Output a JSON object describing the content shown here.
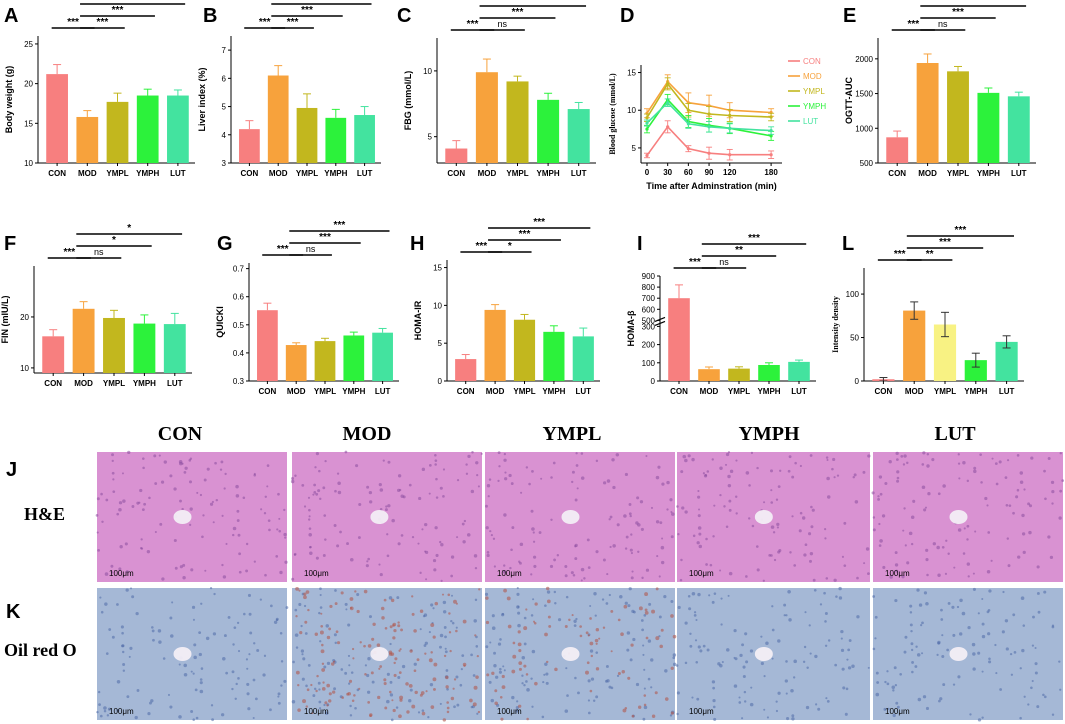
{
  "colors": {
    "CON": "#f77f7f",
    "MOD": "#f7a23c",
    "YMPL": "#c2b71e",
    "YMPH": "#2cf23b",
    "LUT": "#43e39f",
    "YMPL_L": "#f8f283",
    "he_bg": "#d992d2",
    "he_dot": "#8a4d9e",
    "oil_bg": "#a5b8d6",
    "oil_dot": "#4f6aa8",
    "oil_red": "#b0594e"
  },
  "chart_data": [
    {
      "panel": "A",
      "type": "bar",
      "ylabel": "Body weight (g)",
      "categories": [
        "CON",
        "MOD",
        "YMPL",
        "YMPH",
        "LUT"
      ],
      "values": [
        21.2,
        15.8,
        17.7,
        18.5,
        18.5
      ],
      "errors": [
        1.2,
        0.8,
        1.1,
        0.8,
        0.7
      ],
      "ylim": [
        10,
        26
      ],
      "yticks": [
        "10",
        "15",
        "20",
        "25"
      ],
      "colorKeys": [
        "CON",
        "MOD",
        "YMPL",
        "YMPH",
        "LUT"
      ],
      "sig": [
        {
          "from": 0,
          "to": 1,
          "label": "***",
          "tier": 0
        },
        {
          "from": 1,
          "to": 2,
          "label": "***",
          "tier": 0
        },
        {
          "from": 1,
          "to": 3,
          "label": "***",
          "tier": 1
        },
        {
          "from": 1,
          "to": 4,
          "label": "***",
          "tier": 2
        }
      ]
    },
    {
      "panel": "B",
      "type": "bar",
      "ylabel": "Liver index (%)",
      "categories": [
        "CON",
        "MOD",
        "YMPL",
        "YMPH",
        "LUT"
      ],
      "values": [
        4.2,
        6.1,
        4.95,
        4.6,
        4.7
      ],
      "errors": [
        0.3,
        0.35,
        0.5,
        0.3,
        0.3
      ],
      "ylim": [
        3,
        7.5
      ],
      "yticks": [
        "3",
        "4",
        "5",
        "6",
        "7"
      ],
      "colorKeys": [
        "CON",
        "MOD",
        "YMPL",
        "YMPH",
        "LUT"
      ],
      "sig": [
        {
          "from": 0,
          "to": 1,
          "label": "***",
          "tier": 0
        },
        {
          "from": 1,
          "to": 2,
          "label": "***",
          "tier": 0
        },
        {
          "from": 1,
          "to": 3,
          "label": "***",
          "tier": 1
        },
        {
          "from": 1,
          "to": 4,
          "label": "***",
          "tier": 2
        }
      ]
    },
    {
      "panel": "C",
      "type": "bar",
      "ylabel": "FBG (mmol/L)",
      "categories": [
        "CON",
        "MOD",
        "YMPL",
        "YMPH",
        "LUT"
      ],
      "values": [
        4.1,
        9.9,
        9.2,
        7.8,
        7.1
      ],
      "errors": [
        0.6,
        1.0,
        0.4,
        0.5,
        0.5
      ],
      "ylim": [
        3,
        12.5
      ],
      "yticks": [
        "5",
        "10"
      ],
      "colorKeys": [
        "CON",
        "MOD",
        "YMPL",
        "YMPH",
        "LUT"
      ],
      "sig": [
        {
          "from": 0,
          "to": 1,
          "label": "***",
          "tier": 0
        },
        {
          "from": 1,
          "to": 2,
          "label": "ns",
          "tier": 0
        },
        {
          "from": 1,
          "to": 3,
          "label": "***",
          "tier": 1
        },
        {
          "from": 1,
          "to": 4,
          "label": "***",
          "tier": 2
        }
      ]
    },
    {
      "panel": "D",
      "type": "line",
      "ylabel": "Blood glucose (mmol/L)",
      "xlabel": "Time after Adminstration (min)",
      "x": [
        0,
        30,
        60,
        90,
        120,
        180
      ],
      "xticks": [
        "0",
        "30",
        "60",
        "90",
        "120",
        "180"
      ],
      "ylim": [
        3,
        16
      ],
      "yticks": [
        "5",
        "10",
        "15"
      ],
      "series": [
        {
          "name": "CON",
          "colorKey": "CON",
          "values": [
            4.0,
            7.8,
            4.9,
            4.3,
            4.1,
            4.1
          ],
          "errors": [
            0.3,
            0.8,
            0.4,
            0.8,
            0.7,
            0.5
          ]
        },
        {
          "name": "MOD",
          "colorKey": "MOD",
          "values": [
            9.6,
            13.8,
            11.0,
            10.6,
            10.0,
            9.7
          ],
          "errors": [
            0.6,
            0.9,
            1.3,
            1.4,
            1.0,
            0.5
          ]
        },
        {
          "name": "YMPL",
          "colorKey": "YMPL",
          "values": [
            9.0,
            13.5,
            10.0,
            9.5,
            9.3,
            9.1
          ],
          "errors": [
            0.5,
            0.8,
            0.9,
            1.0,
            0.8,
            0.5
          ]
        },
        {
          "name": "YMPH",
          "colorKey": "YMPH",
          "values": [
            7.5,
            11.4,
            8.5,
            8.0,
            7.6,
            6.6
          ],
          "errors": [
            0.5,
            0.7,
            0.8,
            0.9,
            0.7,
            0.6
          ]
        },
        {
          "name": "LUT",
          "colorKey": "LUT",
          "values": [
            8.3,
            11.0,
            8.2,
            7.8,
            7.6,
            7.3
          ],
          "errors": [
            0.4,
            0.5,
            0.6,
            0.7,
            0.6,
            0.5
          ]
        }
      ]
    },
    {
      "panel": "E",
      "type": "bar",
      "ylabel": "OGTT-AUC",
      "categories": [
        "CON",
        "MOD",
        "YMPL",
        "YMPH",
        "LUT"
      ],
      "values": [
        870,
        1940,
        1820,
        1510,
        1460
      ],
      "errors": [
        90,
        130,
        70,
        70,
        60
      ],
      "ylim": [
        500,
        2300
      ],
      "yticks": [
        "500",
        "1000",
        "1500",
        "2000"
      ],
      "colorKeys": [
        "CON",
        "MOD",
        "YMPL",
        "YMPH",
        "LUT"
      ],
      "sig": [
        {
          "from": 0,
          "to": 1,
          "label": "***",
          "tier": 0
        },
        {
          "from": 1,
          "to": 2,
          "label": "ns",
          "tier": 0
        },
        {
          "from": 1,
          "to": 3,
          "label": "***",
          "tier": 1
        },
        {
          "from": 1,
          "to": 4,
          "label": "***",
          "tier": 2
        }
      ]
    },
    {
      "panel": "F",
      "type": "bar",
      "ylabel": "FIN (mIU/L)",
      "categories": [
        "CON",
        "MOD",
        "YMPL",
        "YMPH",
        "LUT"
      ],
      "values": [
        16.2,
        21.6,
        19.8,
        18.7,
        18.6
      ],
      "errors": [
        1.3,
        1.4,
        1.5,
        1.7,
        2.1
      ],
      "ylim": [
        9,
        30
      ],
      "yticks": [
        "10",
        "20"
      ],
      "colorKeys": [
        "CON",
        "MOD",
        "YMPL",
        "YMPH",
        "LUT"
      ],
      "sig": [
        {
          "from": 0,
          "to": 1,
          "label": "***",
          "tier": 0
        },
        {
          "from": 1,
          "to": 2,
          "label": "ns",
          "tier": 0
        },
        {
          "from": 1,
          "to": 3,
          "label": "*",
          "tier": 1
        },
        {
          "from": 1,
          "to": 4,
          "label": "*",
          "tier": 2
        }
      ]
    },
    {
      "panel": "G",
      "type": "bar",
      "ylabel": "QUICKI",
      "categories": [
        "CON",
        "MOD",
        "YMPL",
        "YMPH",
        "LUT"
      ],
      "values": [
        0.552,
        0.428,
        0.442,
        0.462,
        0.472
      ],
      "errors": [
        0.025,
        0.008,
        0.01,
        0.012,
        0.015
      ],
      "ylim": [
        0.3,
        0.72
      ],
      "yticks": [
        "0.3",
        "0.4",
        "0.5",
        "0.6",
        "0.7"
      ],
      "colorKeys": [
        "CON",
        "MOD",
        "YMPL",
        "YMPH",
        "LUT"
      ],
      "sig": [
        {
          "from": 0,
          "to": 1,
          "label": "***",
          "tier": 0
        },
        {
          "from": 1,
          "to": 2,
          "label": "ns",
          "tier": 0
        },
        {
          "from": 1,
          "to": 3,
          "label": "***",
          "tier": 1
        },
        {
          "from": 1,
          "to": 4,
          "label": "***",
          "tier": 2
        }
      ]
    },
    {
      "panel": "H",
      "type": "bar",
      "ylabel": "HOMA-IR",
      "categories": [
        "CON",
        "MOD",
        "YMPL",
        "YMPH",
        "LUT"
      ],
      "values": [
        2.9,
        9.4,
        8.1,
        6.5,
        5.9
      ],
      "errors": [
        0.6,
        0.7,
        0.7,
        0.8,
        1.1
      ],
      "ylim": [
        0,
        16
      ],
      "yticks": [
        "0",
        "5",
        "10",
        "15"
      ],
      "colorKeys": [
        "CON",
        "MOD",
        "YMPL",
        "YMPH",
        "LUT"
      ],
      "sig": [
        {
          "from": 0,
          "to": 1,
          "label": "***",
          "tier": 0
        },
        {
          "from": 1,
          "to": 2,
          "label": "*",
          "tier": 0
        },
        {
          "from": 1,
          "to": 3,
          "label": "***",
          "tier": 1
        },
        {
          "from": 1,
          "to": 4,
          "label": "***",
          "tier": 2
        }
      ]
    },
    {
      "panel": "I",
      "type": "bar",
      "ylabel": "HOMA-β",
      "categories": [
        "CON",
        "MOD",
        "YMPL",
        "YMPH",
        "LUT"
      ],
      "values": [
        700,
        65,
        68,
        88,
        105
      ],
      "errors": [
        120,
        12,
        10,
        12,
        10
      ],
      "ylim": [
        0,
        900
      ],
      "yticks": [
        "0",
        "100",
        "200",
        "300",
        "500",
        "600",
        "700",
        "800",
        "900"
      ],
      "axisBreak": [
        300,
        500
      ],
      "colorKeys": [
        "CON",
        "MOD",
        "YMPL",
        "YMPH",
        "LUT"
      ],
      "sig": [
        {
          "from": 0,
          "to": 1,
          "label": "***",
          "tier": 0
        },
        {
          "from": 1,
          "to": 2,
          "label": "ns",
          "tier": 0
        },
        {
          "from": 1,
          "to": 3,
          "label": "**",
          "tier": 1
        },
        {
          "from": 1,
          "to": 4,
          "label": "***",
          "tier": 2
        }
      ]
    },
    {
      "panel": "L",
      "type": "bar",
      "ylabel": "Intensity density",
      "categories": [
        "CON",
        "MOD",
        "YMPL",
        "YMPH",
        "LUT"
      ],
      "values": [
        2,
        81,
        65,
        24,
        45
      ],
      "errors": [
        2,
        10,
        14,
        8,
        7
      ],
      "ylim": [
        0,
        130
      ],
      "yticks": [
        "0",
        "50",
        "100"
      ],
      "colorKeys": [
        "CON",
        "MOD",
        "YMPL_L",
        "YMPH",
        "LUT"
      ],
      "sig": [
        {
          "from": 0,
          "to": 1,
          "label": "***",
          "tier": 0
        },
        {
          "from": 1,
          "to": 2,
          "label": "**",
          "tier": 0
        },
        {
          "from": 1,
          "to": 3,
          "label": "***",
          "tier": 1
        },
        {
          "from": 1,
          "to": 4,
          "label": "***",
          "tier": 2
        }
      ]
    }
  ],
  "histology": {
    "columns": [
      "CON",
      "MOD",
      "YMPL",
      "YMPH",
      "LUT"
    ],
    "rows": [
      {
        "panel": "J",
        "label": "H&E",
        "stain": "he"
      },
      {
        "panel": "K",
        "label": "Oil red O",
        "stain": "oil"
      }
    ],
    "scale_bar": "100μm"
  }
}
